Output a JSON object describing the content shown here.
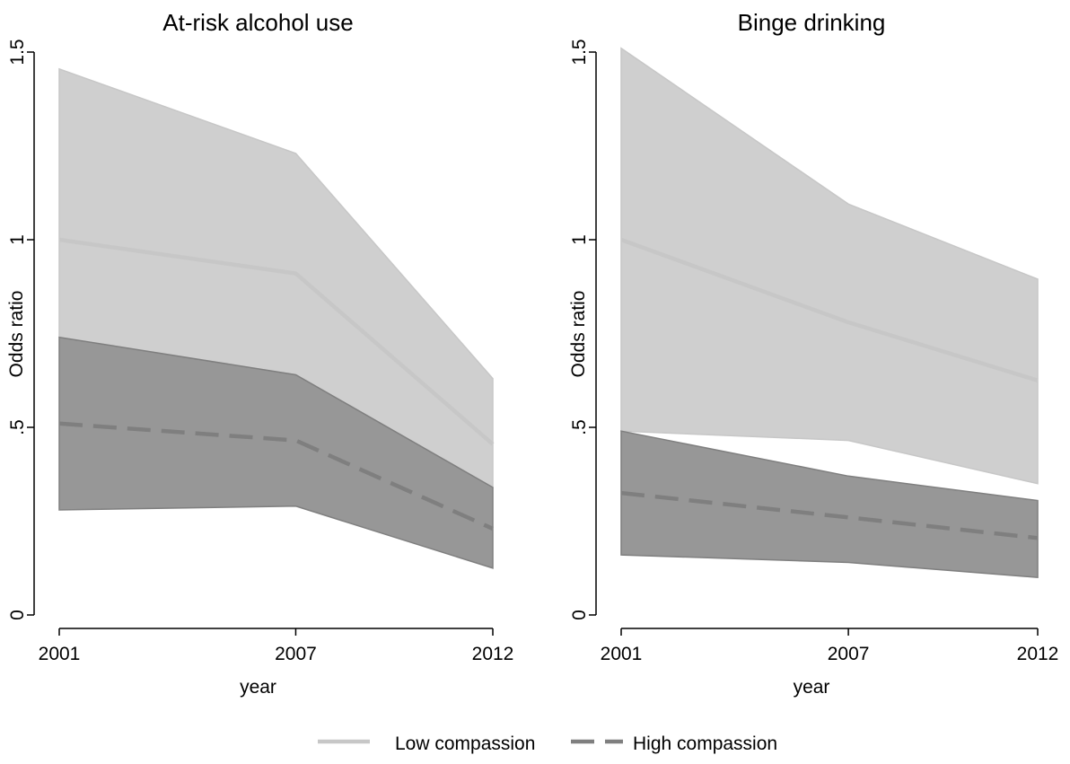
{
  "chart_data": [
    {
      "type": "area",
      "title": "At-risk alcohol use",
      "xlabel": "year",
      "ylabel": "Odds ratio",
      "x": [
        2001,
        2007,
        2012
      ],
      "x_tick_labels": [
        "2001",
        "2007",
        "2012"
      ],
      "y_ticks": [
        0,
        0.5,
        1,
        1.5
      ],
      "y_tick_labels": [
        "0",
        ".5",
        "1",
        "1.5"
      ],
      "ylim": [
        0,
        1.5
      ],
      "series": [
        {
          "name": "Low compassion",
          "line_style": "solid",
          "color": "#c7c7c7",
          "band_color": "#cfcfcf",
          "values": [
            1.0,
            0.91,
            0.455
          ],
          "ci_low": [
            0.74,
            0.64,
            0.34
          ],
          "ci_high": [
            1.455,
            1.23,
            0.63
          ]
        },
        {
          "name": "High compassion",
          "line_style": "dashed",
          "color": "#7f7f7f",
          "band_color": "#979797",
          "values": [
            0.51,
            0.465,
            0.23
          ],
          "ci_low": [
            0.28,
            0.29,
            0.125
          ],
          "ci_high": [
            0.74,
            0.64,
            0.34
          ]
        }
      ]
    },
    {
      "type": "area",
      "title": "Binge drinking",
      "xlabel": "year",
      "ylabel": "Odds ratio",
      "x": [
        2001,
        2007,
        2012
      ],
      "x_tick_labels": [
        "2001",
        "2007",
        "2012"
      ],
      "y_ticks": [
        0,
        0.5,
        1,
        1.5
      ],
      "y_tick_labels": [
        "0",
        ".5",
        "1",
        "1.5"
      ],
      "ylim": [
        0,
        1.5
      ],
      "series": [
        {
          "name": "Low compassion",
          "line_style": "solid",
          "color": "#c7c7c7",
          "band_color": "#cfcfcf",
          "values": [
            1.0,
            0.78,
            0.625
          ],
          "ci_low": [
            0.49,
            0.465,
            0.35
          ],
          "ci_high": [
            1.51,
            1.095,
            0.895
          ]
        },
        {
          "name": "High compassion",
          "line_style": "dashed",
          "color": "#7f7f7f",
          "band_color": "#979797",
          "values": [
            0.325,
            0.26,
            0.205
          ],
          "ci_low": [
            0.16,
            0.14,
            0.1
          ],
          "ci_high": [
            0.49,
            0.37,
            0.305
          ]
        }
      ]
    }
  ],
  "legend": {
    "position": "bottom-center",
    "items": [
      {
        "label": "Low compassion",
        "line_style": "solid",
        "color": "#c7c7c7"
      },
      {
        "label": "High compassion",
        "line_style": "dashed",
        "color": "#7f7f7f"
      }
    ]
  }
}
